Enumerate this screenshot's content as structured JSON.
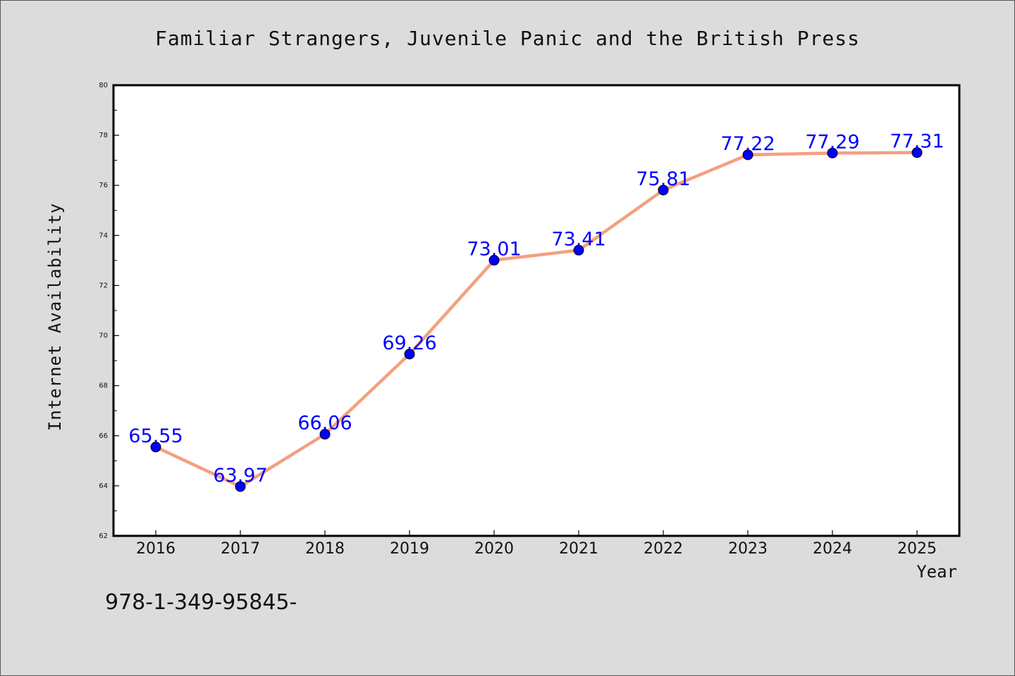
{
  "chart_data": {
    "type": "line",
    "title": "Familiar Strangers, Juvenile Panic and the British Press",
    "xlabel": "Year",
    "ylabel": "Internet Availability",
    "x": [
      "2016",
      "2017",
      "2018",
      "2019",
      "2020",
      "2021",
      "2022",
      "2023",
      "2024",
      "2025"
    ],
    "series": [
      {
        "values": [
          65.55,
          63.97,
          66.06,
          69.26,
          73.01,
          73.41,
          75.81,
          77.22,
          77.29,
          77.31
        ],
        "labels": [
          "65.55",
          "63.97",
          "66.06",
          "69.26",
          "73.01",
          "73.41",
          "75.81",
          "77.22",
          "77.29",
          "77.31"
        ],
        "line_color": "#f4a07f",
        "marker_color": "#0000ff"
      }
    ],
    "ylim": [
      62,
      80
    ],
    "yticks": [
      "62",
      "64",
      "66",
      "68",
      "70",
      "72",
      "74",
      "76",
      "78",
      "80"
    ],
    "grid": false,
    "label_color": "#0000ff"
  },
  "footer": {
    "isbn": "978-1-349-95845-"
  }
}
